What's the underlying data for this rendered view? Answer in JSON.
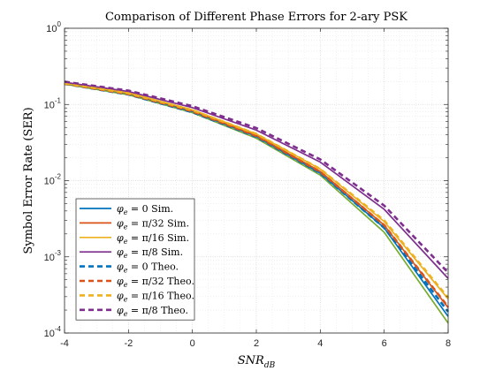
{
  "chart_data": {
    "type": "line",
    "title": "Comparison of Different Phase Errors for 2-ary PSK",
    "xlabel": {
      "main": "SNR",
      "sub": "dB"
    },
    "ylabel": "Symbol Error Rate (SER)",
    "xlim": [
      -4,
      8
    ],
    "ylim": [
      0.0001,
      1
    ],
    "yscale": "log",
    "grid": true,
    "minor_grid": true,
    "legend_position": "lower-left",
    "x_ticks": [
      "-4",
      "-2",
      "0",
      "2",
      "4",
      "6",
      "8"
    ],
    "y_ticks": [
      {
        "base": "10",
        "exp": "0"
      },
      {
        "base": "10",
        "exp": "-1"
      },
      {
        "base": "10",
        "exp": "-2"
      },
      {
        "base": "10",
        "exp": "-3"
      },
      {
        "base": "10",
        "exp": "-4"
      }
    ],
    "x": [
      -4,
      -2,
      0,
      2,
      4,
      6,
      8
    ],
    "series": [
      {
        "name": "φe = 0 Sim.",
        "label": {
          "pre": "φ",
          "sub": "e",
          "eq": " = 0",
          "post": " Sim."
        },
        "color": "#0072bd",
        "dashed": false,
        "values": [
          0.189,
          0.139,
          0.081,
          0.038,
          0.0125,
          0.0024,
          0.000165
        ]
      },
      {
        "name": "φe = π/32 Sim.",
        "label": {
          "pre": "φ",
          "sub": "e",
          "eq": " = π/32",
          "post": " Sim."
        },
        "color": "#d95319",
        "dashed": false,
        "values": [
          0.19,
          0.14,
          0.083,
          0.039,
          0.0132,
          0.0026,
          0.000215
        ]
      },
      {
        "name": "φe = π/16 Sim.",
        "label": {
          "pre": "φ",
          "sub": "e",
          "eq": " = π/16",
          "post": " Sim."
        },
        "color": "#edb120",
        "dashed": false,
        "values": [
          0.191,
          0.142,
          0.085,
          0.041,
          0.0142,
          0.0029,
          0.00028
        ]
      },
      {
        "name": "φe = π/8 Sim.",
        "label": {
          "pre": "φ",
          "sub": "e",
          "eq": " = π/8",
          "post": " Sim."
        },
        "color": "#7e2f8e",
        "dashed": false,
        "values": [
          0.196,
          0.148,
          0.091,
          0.046,
          0.0175,
          0.0042,
          0.00052
        ]
      },
      {
        "name": "φe = 0 Theo.",
        "label": {
          "pre": "φ",
          "sub": "e",
          "eq": " = 0",
          "post": " Theo."
        },
        "color": "#0072bd",
        "dashed": true,
        "values": [
          0.186,
          0.135,
          0.079,
          0.0375,
          0.0125,
          0.0024,
          0.00019
        ]
      },
      {
        "name": "φe = π/32 Theo.",
        "label": {
          "pre": "φ",
          "sub": "e",
          "eq": " = π/32",
          "post": " Theo."
        },
        "color": "#d95319",
        "dashed": true,
        "values": [
          0.187,
          0.137,
          0.081,
          0.0385,
          0.013,
          0.0026,
          0.00022
        ]
      },
      {
        "name": "φe = π/16 Theo.",
        "label": {
          "pre": "φ",
          "sub": "e",
          "eq": " = π/16",
          "post": " Theo."
        },
        "color": "#edb120",
        "dashed": true,
        "values": [
          0.189,
          0.14,
          0.084,
          0.041,
          0.0142,
          0.003,
          0.00029
        ]
      },
      {
        "name": "φe = π/8 Theo.",
        "label": {
          "pre": "φ",
          "sub": "e",
          "eq": " = π/8",
          "post": " Theo."
        },
        "color": "#7e2f8e",
        "dashed": true,
        "values": [
          0.199,
          0.152,
          0.095,
          0.049,
          0.019,
          0.0047,
          0.00062
        ]
      }
    ],
    "unlabeled_series": [
      {
        "color": "#77ac30",
        "dashed": false,
        "values": [
          0.185,
          0.134,
          0.078,
          0.036,
          0.0118,
          0.0021,
          0.000135
        ]
      }
    ]
  }
}
